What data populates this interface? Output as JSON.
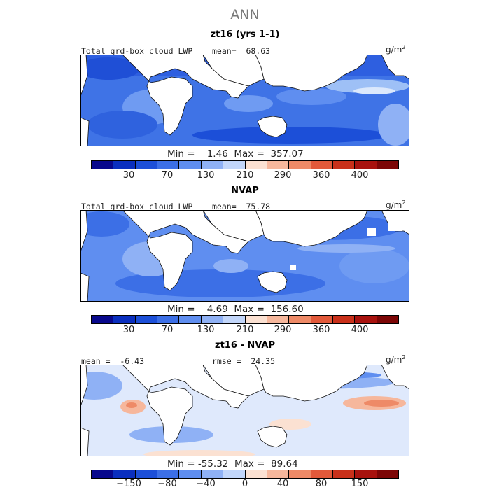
{
  "figure_title": "ANN",
  "panels": [
    {
      "title": "zt16 (yrs 1-1)",
      "left_label": "Total grd-box cloud LWP",
      "middle_label": "mean=  68.63",
      "units": "g/m",
      "units_sup": "2",
      "min_max": "Min =    1.46  Max =  357.07",
      "colorbar_ticks": [
        "30",
        "70",
        "130",
        "210",
        "290",
        "360",
        "400"
      ]
    },
    {
      "title": "NVAP",
      "left_label": "Total grd-box cloud LWP",
      "middle_label": "mean=  75.78",
      "units": "g/m",
      "units_sup": "2",
      "min_max": "Min =    4.69  Max =  156.60",
      "colorbar_ticks": [
        "30",
        "70",
        "130",
        "210",
        "290",
        "360",
        "400"
      ]
    },
    {
      "title": "zt16 - NVAP",
      "left_label": "mean =  -6.43",
      "middle_label": "rmse =  24.35",
      "units": "g/m",
      "units_sup": "2",
      "min_max": "Min = -55.32  Max =  89.64",
      "colorbar_ticks": [
        "−150",
        "−80",
        "−40",
        "0",
        "40",
        "80",
        "150"
      ]
    }
  ],
  "colors": {
    "abs_scale": [
      "#08088c",
      "#0a2fbf",
      "#1c4fd8",
      "#3c6fe6",
      "#5f8ef0",
      "#8fb1f5",
      "#c2d6fa",
      "#fbe1d2",
      "#f6b79c",
      "#ee8a67",
      "#e2593a",
      "#c9301a",
      "#a8120e",
      "#7c0606"
    ],
    "diff_scale": [
      "#08088c",
      "#0a2fbf",
      "#1c4fd8",
      "#3c6fe6",
      "#5f8ef0",
      "#8fb1f5",
      "#c2d6fa",
      "#fbe1d2",
      "#f6b79c",
      "#ee8a67",
      "#e2593a",
      "#c9301a",
      "#a8120e",
      "#7c0606"
    ]
  }
}
